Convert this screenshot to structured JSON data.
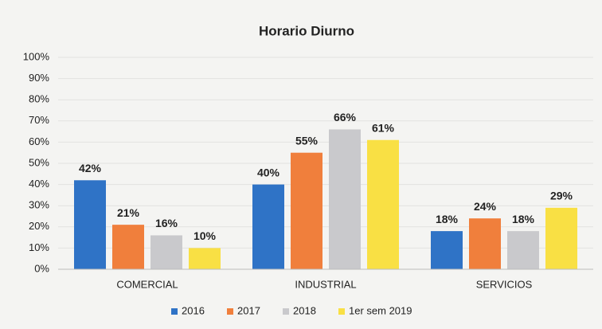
{
  "chart_data": {
    "type": "bar",
    "title": "Horario Diurno",
    "categories": [
      "COMERCIAL",
      "INDUSTRIAL",
      "SERVICIOS"
    ],
    "series": [
      {
        "name": "2016",
        "color": "#2f73c6",
        "values": [
          42,
          40,
          18
        ],
        "value_labels": [
          "42%",
          "40%",
          "18%"
        ]
      },
      {
        "name": "2017",
        "color": "#f07f3c",
        "values": [
          21,
          55,
          24
        ],
        "value_labels": [
          "21%",
          "55%",
          "24%"
        ]
      },
      {
        "name": "2018",
        "color": "#c9c9cc",
        "values": [
          16,
          66,
          18
        ],
        "value_labels": [
          "16%",
          "66%",
          "18%"
        ]
      },
      {
        "name": "1er sem 2019",
        "color": "#f9e044",
        "values": [
          10,
          61,
          29
        ],
        "value_labels": [
          "10%",
          "61%",
          "29%"
        ]
      }
    ],
    "ylim": [
      0,
      100
    ],
    "yticks": [
      {
        "value": 0,
        "label": "0%"
      },
      {
        "value": 10,
        "label": "10%"
      },
      {
        "value": 20,
        "label": "20%"
      },
      {
        "value": 30,
        "label": "30%"
      },
      {
        "value": 40,
        "label": "40%"
      },
      {
        "value": 50,
        "label": "50%"
      },
      {
        "value": 60,
        "label": "60%"
      },
      {
        "value": 70,
        "label": "70%"
      },
      {
        "value": 80,
        "label": "80%"
      },
      {
        "value": 90,
        "label": "90%"
      },
      {
        "value": 100,
        "label": "100%"
      }
    ],
    "grid": true,
    "legend": "bottom"
  }
}
